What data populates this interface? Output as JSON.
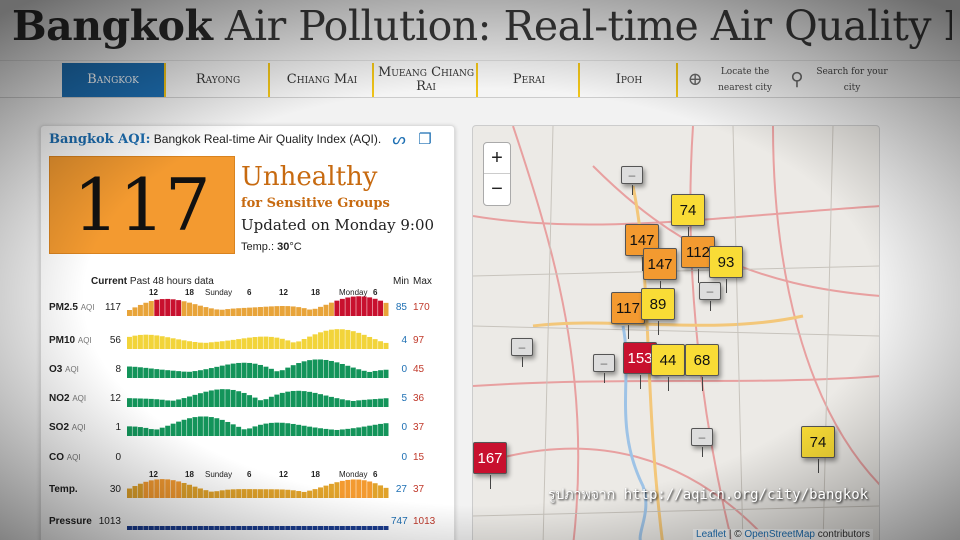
{
  "title": {
    "bold": "Bangkok",
    "rest": " Air Pollution: Real-time Air Quality Index (AQI)"
  },
  "tabs": [
    {
      "label": "Bangkok"
    },
    {
      "label": "Rayong"
    },
    {
      "label": "Chiang Mai"
    },
    {
      "label": "Mueang Chiang Rai"
    },
    {
      "label": "Perai"
    },
    {
      "label": "Ipoh"
    }
  ],
  "actions": {
    "locate": "Locate the nearest city",
    "search": "Search for your city"
  },
  "panel": {
    "heading_bold": "Bangkok AQI:",
    "heading_rest": " Bangkok Real-time Air Quality Index (AQI).",
    "aqi_value": "117",
    "status": "Unhealthy",
    "status_sub": "for Sensitive Groups",
    "updated": "Updated on Monday 9:00",
    "temp_label": "Temp.:",
    "temp_value": "30",
    "temp_unit": "°C",
    "history_current": "Current",
    "history_label": " Past 48 hours data",
    "min_label": "Min",
    "max_label": "Max",
    "ticks_hours": [
      "12",
      "18",
      "6",
      "12",
      "18",
      "6"
    ],
    "ticks_days": [
      "Sunday",
      "Monday"
    ],
    "rows": [
      {
        "name": "PM2.5",
        "sub": "AQI",
        "current": "117",
        "min": "85",
        "max": "170",
        "color": "#e8a43a"
      },
      {
        "name": "PM10",
        "sub": "AQI",
        "current": "56",
        "min": "4",
        "max": "97",
        "color": "#f2d43a"
      },
      {
        "name": "O3",
        "sub": "AQI",
        "current": "8",
        "min": "0",
        "max": "45",
        "color": "#13945a"
      },
      {
        "name": "NO2",
        "sub": "AQI",
        "current": "12",
        "min": "5",
        "max": "36",
        "color": "#13945a"
      },
      {
        "name": "SO2",
        "sub": "AQI",
        "current": "1",
        "min": "0",
        "max": "37",
        "color": "#13945a"
      },
      {
        "name": "CO",
        "sub": "AQI",
        "current": "0",
        "min": "0",
        "max": "15",
        "color": "#13945a"
      },
      {
        "name": "Temp.",
        "sub": "",
        "current": "30",
        "min": "27",
        "max": "37",
        "color": "#e0a22a"
      },
      {
        "name": "Pressure",
        "sub": "",
        "current": "1013",
        "min": "747",
        "max": "1013",
        "color": "#1a3c8f"
      }
    ]
  },
  "map": {
    "zoom_in": "+",
    "zoom_out": "−",
    "markers": [
      "74",
      "147",
      "147",
      "112",
      "93",
      "117",
      "89",
      "153",
      "44",
      "68",
      "74",
      "167"
    ],
    "attrib_leaflet": "Leaflet",
    "attrib_sep": " | © ",
    "attrib_osm": "OpenStreetMap",
    "attrib_rest": " contributors"
  },
  "source_note": "รูปภาพจาก http://aqicn.org/city/bangkok"
}
